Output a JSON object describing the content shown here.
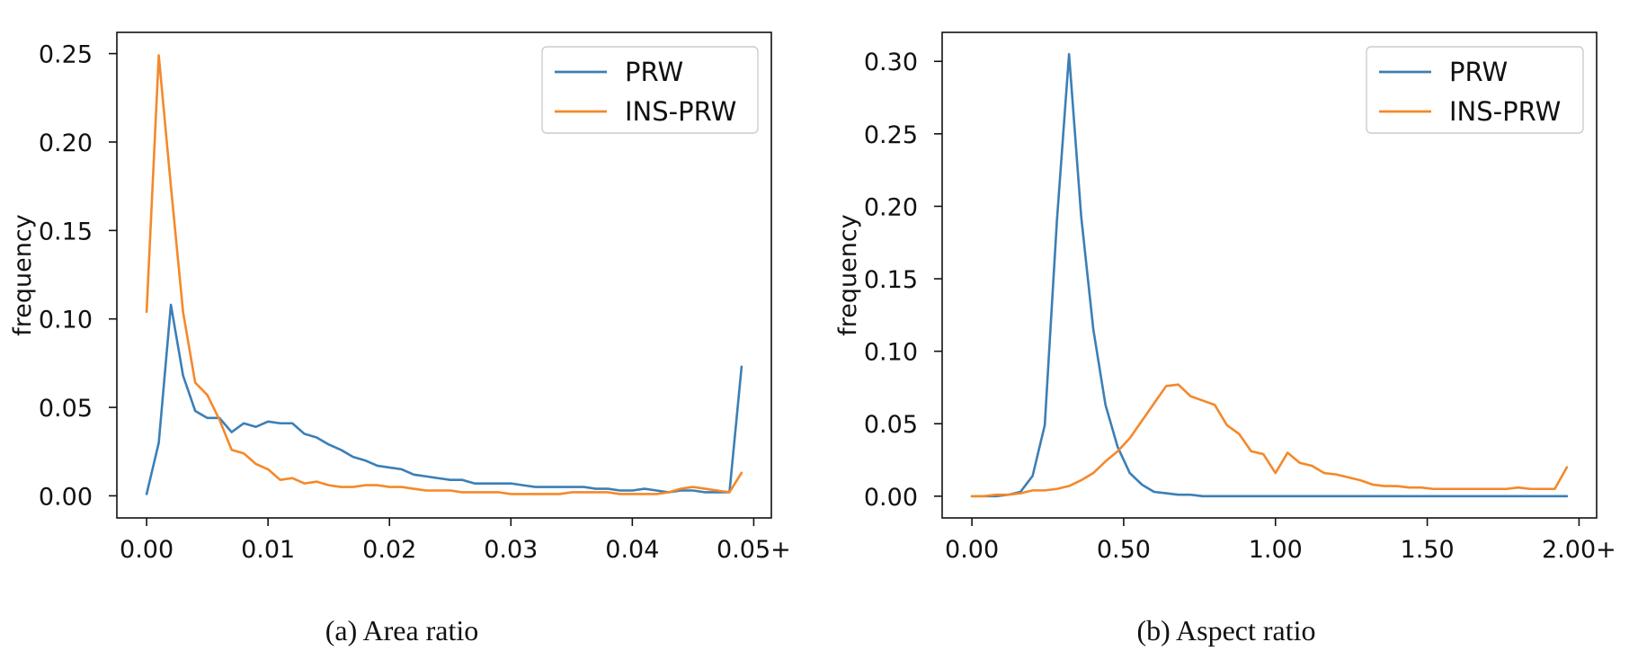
{
  "colors": {
    "PRW": "#3b7fb6",
    "INS-PRW": "#f5882a"
  },
  "chart_data": [
    {
      "type": "line",
      "caption": "(a) Area ratio",
      "ylabel": "frequency",
      "xlabel": "",
      "legend_position": "top-right",
      "grid": false,
      "xlim": [
        -0.00245,
        0.05145
      ],
      "ylim": [
        -0.0125,
        0.262
      ],
      "xticks": [
        0,
        0.01,
        0.02,
        0.03,
        0.04,
        0.05
      ],
      "xtick_labels": [
        "0.00",
        "0.01",
        "0.02",
        "0.03",
        "0.04",
        "0.05+"
      ],
      "yticks": [
        0,
        0.05,
        0.1,
        0.15,
        0.2,
        0.25
      ],
      "ytick_labels": [
        "0.00",
        "0.05",
        "0.10",
        "0.15",
        "0.20",
        "0.25"
      ],
      "x": [
        0.0,
        0.001,
        0.002,
        0.003,
        0.004,
        0.005,
        0.006,
        0.007,
        0.008,
        0.009,
        0.01,
        0.011,
        0.012,
        0.013,
        0.014,
        0.015,
        0.016,
        0.017,
        0.018,
        0.019,
        0.02,
        0.021,
        0.022,
        0.023,
        0.024,
        0.025,
        0.026,
        0.027,
        0.028,
        0.029,
        0.03,
        0.031,
        0.032,
        0.033,
        0.034,
        0.035,
        0.036,
        0.037,
        0.038,
        0.039,
        0.04,
        0.041,
        0.042,
        0.043,
        0.044,
        0.045,
        0.046,
        0.047,
        0.048,
        0.049
      ],
      "series": [
        {
          "name": "PRW",
          "values": [
            0.001,
            0.03,
            0.108,
            0.068,
            0.048,
            0.044,
            0.044,
            0.036,
            0.041,
            0.039,
            0.042,
            0.041,
            0.041,
            0.035,
            0.033,
            0.029,
            0.026,
            0.022,
            0.02,
            0.017,
            0.016,
            0.015,
            0.012,
            0.011,
            0.01,
            0.009,
            0.009,
            0.007,
            0.007,
            0.007,
            0.007,
            0.006,
            0.005,
            0.005,
            0.005,
            0.005,
            0.005,
            0.004,
            0.004,
            0.003,
            0.003,
            0.004,
            0.003,
            0.002,
            0.003,
            0.003,
            0.002,
            0.002,
            0.002,
            0.073
          ]
        },
        {
          "name": "INS-PRW",
          "values": [
            0.104,
            0.249,
            0.175,
            0.104,
            0.064,
            0.057,
            0.043,
            0.026,
            0.024,
            0.018,
            0.015,
            0.009,
            0.01,
            0.007,
            0.008,
            0.006,
            0.005,
            0.005,
            0.006,
            0.006,
            0.005,
            0.005,
            0.004,
            0.003,
            0.003,
            0.003,
            0.002,
            0.002,
            0.002,
            0.002,
            0.001,
            0.001,
            0.001,
            0.001,
            0.001,
            0.002,
            0.002,
            0.002,
            0.002,
            0.001,
            0.001,
            0.001,
            0.001,
            0.002,
            0.004,
            0.005,
            0.004,
            0.003,
            0.002,
            0.013
          ]
        }
      ]
    },
    {
      "type": "line",
      "caption": "(b) Aspect ratio",
      "ylabel": "frequency",
      "xlabel": "",
      "legend_position": "top-right",
      "grid": false,
      "xlim": [
        -0.098,
        2.058
      ],
      "ylim": [
        -0.015,
        0.32
      ],
      "xticks": [
        0,
        0.5,
        1.0,
        1.5,
        2.0
      ],
      "xtick_labels": [
        "0.00",
        "0.50",
        "1.00",
        "1.50",
        "2.00+"
      ],
      "yticks": [
        0,
        0.05,
        0.1,
        0.15,
        0.2,
        0.25,
        0.3
      ],
      "ytick_labels": [
        "0.00",
        "0.05",
        "0.10",
        "0.15",
        "0.20",
        "0.25",
        "0.30"
      ],
      "x": [
        0.0,
        0.04,
        0.08,
        0.12,
        0.16,
        0.2,
        0.24,
        0.28,
        0.32,
        0.36,
        0.4,
        0.44,
        0.48,
        0.52,
        0.56,
        0.6,
        0.64,
        0.68,
        0.72,
        0.76,
        0.8,
        0.84,
        0.88,
        0.92,
        0.96,
        1.0,
        1.04,
        1.08,
        1.12,
        1.16,
        1.2,
        1.24,
        1.28,
        1.32,
        1.36,
        1.4,
        1.44,
        1.48,
        1.52,
        1.56,
        1.6,
        1.64,
        1.68,
        1.72,
        1.76,
        1.8,
        1.84,
        1.88,
        1.92,
        1.96
      ],
      "series": [
        {
          "name": "PRW",
          "values": [
            0.0,
            0.0,
            0.0,
            0.001,
            0.003,
            0.014,
            0.049,
            0.19,
            0.305,
            0.193,
            0.115,
            0.063,
            0.034,
            0.016,
            0.008,
            0.003,
            0.002,
            0.001,
            0.001,
            0.0,
            0.0,
            0.0,
            0.0,
            0.0,
            0.0,
            0.0,
            0.0,
            0.0,
            0.0,
            0.0,
            0.0,
            0.0,
            0.0,
            0.0,
            0.0,
            0.0,
            0.0,
            0.0,
            0.0,
            0.0,
            0.0,
            0.0,
            0.0,
            0.0,
            0.0,
            0.0,
            0.0,
            0.0,
            0.0,
            0.0
          ]
        },
        {
          "name": "INS-PRW",
          "values": [
            0.0,
            0.0,
            0.001,
            0.001,
            0.002,
            0.004,
            0.004,
            0.005,
            0.007,
            0.011,
            0.016,
            0.024,
            0.031,
            0.04,
            0.052,
            0.064,
            0.076,
            0.077,
            0.069,
            0.066,
            0.063,
            0.049,
            0.043,
            0.031,
            0.029,
            0.016,
            0.03,
            0.023,
            0.021,
            0.016,
            0.015,
            0.013,
            0.011,
            0.008,
            0.007,
            0.007,
            0.006,
            0.006,
            0.005,
            0.005,
            0.005,
            0.005,
            0.005,
            0.005,
            0.005,
            0.006,
            0.005,
            0.005,
            0.005,
            0.02
          ]
        }
      ]
    }
  ]
}
